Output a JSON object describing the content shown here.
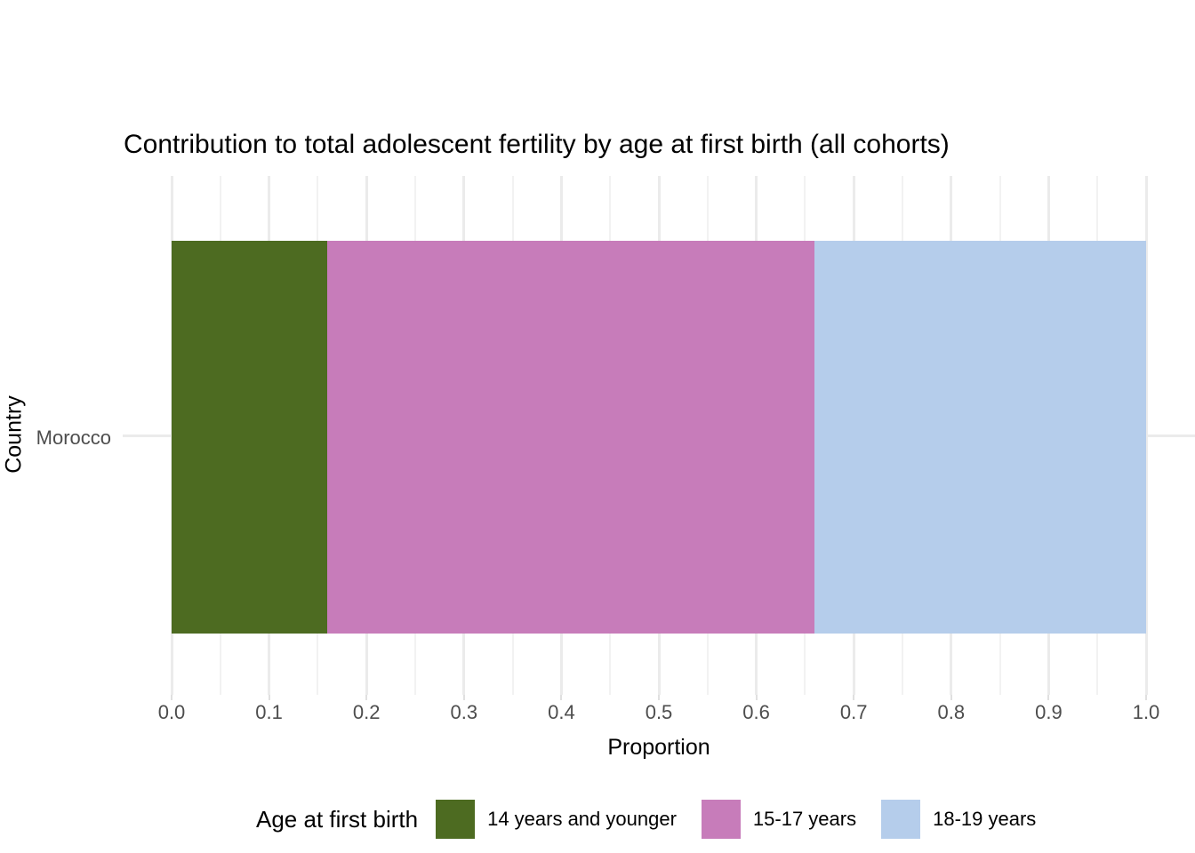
{
  "chart_data": {
    "type": "bar",
    "orientation": "horizontal",
    "stacked": true,
    "title": "Contribution to total adolescent fertility by age at first birth (all cohorts)",
    "xlabel": "Proportion",
    "ylabel": "Country",
    "categories": [
      "Morocco"
    ],
    "series": [
      {
        "name": "14 years and younger",
        "values": [
          0.16
        ],
        "color": "#4d6b21"
      },
      {
        "name": "15-17 years",
        "values": [
          0.5
        ],
        "color": "#c77cba"
      },
      {
        "name": "18-19 years",
        "values": [
          0.34
        ],
        "color": "#b5cdeb"
      }
    ],
    "xlim": [
      0,
      1
    ],
    "x_ticks": [
      0,
      0.1,
      0.2,
      0.3,
      0.4,
      0.5,
      0.6,
      0.7,
      0.8,
      0.9,
      1
    ],
    "x_tick_labels": [
      "0.0",
      "0.1",
      "0.2",
      "0.3",
      "0.4",
      "0.5",
      "0.6",
      "0.7",
      "0.8",
      "0.9",
      "1.0"
    ],
    "minor_tick_step": 0.05,
    "grid": "on",
    "legend_position": "bottom",
    "legend_title": "Age at first birth"
  },
  "style": {
    "background": "#ffffff",
    "grid_major_color": "#ebebeb",
    "grid_minor_color": "#f2f2f2",
    "tick_mark_color": "#e0e0e0",
    "axis_text_color": "#4d4d4d",
    "title_color": "#000000"
  }
}
